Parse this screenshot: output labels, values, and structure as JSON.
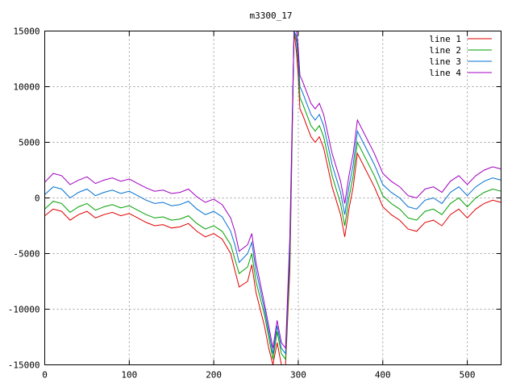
{
  "chart_data": {
    "type": "line",
    "title": "m3300_17",
    "xlabel": "",
    "ylabel": "",
    "xlim": [
      0,
      540
    ],
    "ylim": [
      -15000,
      15000
    ],
    "x_ticks": [
      0,
      100,
      200,
      300,
      400,
      500
    ],
    "y_ticks": [
      -15000,
      -10000,
      -5000,
      0,
      5000,
      10000,
      15000
    ],
    "grid": true,
    "legend_position": "top-right",
    "x": [
      0,
      10,
      20,
      30,
      40,
      50,
      60,
      70,
      80,
      90,
      100,
      110,
      120,
      130,
      140,
      150,
      160,
      170,
      180,
      190,
      200,
      210,
      220,
      225,
      230,
      240,
      245,
      250,
      260,
      265,
      270,
      275,
      280,
      285,
      290,
      295,
      298,
      300,
      302,
      305,
      310,
      315,
      320,
      325,
      330,
      340,
      350,
      355,
      360,
      365,
      370,
      380,
      390,
      400,
      410,
      420,
      430,
      440,
      450,
      460,
      470,
      480,
      490,
      500,
      510,
      520,
      530,
      540
    ],
    "series": [
      {
        "name": "line 1",
        "color": "#e00000",
        "values": [
          -1600,
          -1000,
          -1200,
          -2000,
          -1500,
          -1200,
          -1800,
          -1500,
          -1300,
          -1600,
          -1400,
          -1800,
          -2200,
          -2500,
          -2400,
          -2700,
          -2600,
          -2300,
          -3000,
          -3500,
          -3200,
          -3700,
          -5000,
          -6500,
          -8000,
          -7500,
          -6000,
          -8500,
          -11500,
          -13500,
          -15000,
          -13000,
          -15000,
          -15000,
          -6500,
          15000,
          13000,
          11000,
          8000,
          7500,
          6500,
          5500,
          5000,
          5500,
          4500,
          1000,
          -1500,
          -3500,
          -1000,
          1000,
          4000,
          2500,
          1000,
          -800,
          -1500,
          -2000,
          -2800,
          -3000,
          -2200,
          -2000,
          -2500,
          -1500,
          -1000,
          -1800,
          -1000,
          -500,
          -200,
          -400
        ]
      },
      {
        "name": "line 2",
        "color": "#00a000",
        "values": [
          -1000,
          -300,
          -500,
          -1300,
          -800,
          -500,
          -1100,
          -800,
          -600,
          -900,
          -700,
          -1100,
          -1500,
          -1800,
          -1700,
          -2000,
          -1900,
          -1600,
          -2300,
          -2800,
          -2500,
          -3000,
          -4200,
          -5500,
          -6800,
          -6200,
          -5000,
          -7500,
          -10500,
          -12500,
          -14500,
          -12000,
          -14000,
          -14500,
          -5500,
          15000,
          14000,
          12000,
          9000,
          8500,
          7500,
          6500,
          6000,
          6500,
          5500,
          2000,
          -500,
          -2500,
          0,
          2000,
          5000,
          3500,
          2000,
          200,
          -500,
          -1000,
          -1800,
          -2000,
          -1200,
          -1000,
          -1500,
          -500,
          0,
          -800,
          0,
          500,
          800,
          600
        ]
      },
      {
        "name": "line 3",
        "color": "#0070d0",
        "values": [
          300,
          1000,
          800,
          0,
          500,
          800,
          200,
          500,
          700,
          400,
          600,
          200,
          -200,
          -500,
          -400,
          -700,
          -600,
          -300,
          -1000,
          -1500,
          -1200,
          -1700,
          -3000,
          -4200,
          -5800,
          -5000,
          -4000,
          -6500,
          -10000,
          -12000,
          -14000,
          -11500,
          -13500,
          -14000,
          -4500,
          15000,
          14500,
          12500,
          10000,
          9500,
          8500,
          7500,
          7000,
          7500,
          6500,
          3000,
          500,
          -1500,
          1000,
          3000,
          6000,
          4500,
          3000,
          1200,
          500,
          0,
          -800,
          -1000,
          -200,
          0,
          -500,
          500,
          1000,
          200,
          1000,
          1500,
          1800,
          1600
        ]
      },
      {
        "name": "line 4",
        "color": "#a000c0",
        "values": [
          1400,
          2200,
          2000,
          1200,
          1600,
          1900,
          1300,
          1600,
          1800,
          1500,
          1700,
          1300,
          900,
          600,
          700,
          400,
          500,
          800,
          100,
          -400,
          -100,
          -600,
          -1800,
          -3000,
          -4800,
          -4200,
          -3200,
          -5800,
          -9500,
          -11500,
          -13500,
          -11000,
          -13000,
          -13500,
          -3500,
          15000,
          15000,
          13500,
          11000,
          10500,
          9500,
          8500,
          8000,
          8500,
          7500,
          4000,
          1500,
          -500,
          2000,
          4000,
          7000,
          5500,
          4000,
          2200,
          1500,
          1000,
          200,
          0,
          800,
          1000,
          500,
          1500,
          2000,
          1200,
          2000,
          2500,
          2800,
          2600
        ]
      }
    ]
  }
}
